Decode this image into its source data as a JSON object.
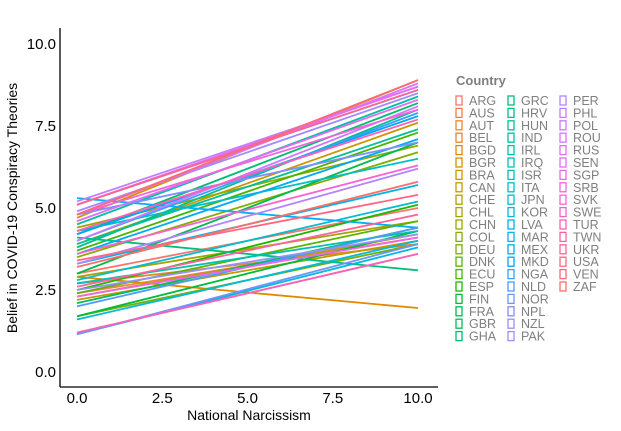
{
  "chart_data": {
    "type": "line",
    "title": "",
    "xlabel": "National Narcissism",
    "ylabel": "Belief in COVID-19 Conspiracy Theories",
    "xlim": [
      0,
      10
    ],
    "ylim": [
      0,
      10
    ],
    "x_ticks": [
      "0.0",
      "2.5",
      "5.0",
      "7.5",
      "10.0"
    ],
    "y_ticks": [
      "0.0",
      "2.5",
      "5.0",
      "7.5",
      "10.0"
    ],
    "grid": false,
    "legend": {
      "title": "Country",
      "placement": "right"
    },
    "x": [
      0,
      10
    ],
    "series": [
      {
        "name": "ARG",
        "color": "#F8766D",
        "values": [
          3.0,
          5.0
        ]
      },
      {
        "name": "AUS",
        "color": "#F47D4D",
        "values": [
          2.4,
          4.1
        ]
      },
      {
        "name": "AUT",
        "color": "#EE8431",
        "values": [
          1.2,
          3.6
        ]
      },
      {
        "name": "BEL",
        "color": "#E88526",
        "values": [
          2.7,
          3.9
        ]
      },
      {
        "name": "BGD",
        "color": "#E38900",
        "values": [
          2.9,
          1.95
        ]
      },
      {
        "name": "BGR",
        "color": "#D89000",
        "values": [
          4.7,
          8.9
        ]
      },
      {
        "name": "BRA",
        "color": "#CC9600",
        "values": [
          3.9,
          7.6
        ]
      },
      {
        "name": "CAN",
        "color": "#BF9B00",
        "values": [
          2.2,
          4.0
        ]
      },
      {
        "name": "CHE",
        "color": "#B4A000",
        "values": [
          2.3,
          4.2
        ]
      },
      {
        "name": "CHL",
        "color": "#A6A400",
        "values": [
          2.9,
          4.6
        ]
      },
      {
        "name": "CHN",
        "color": "#98A800",
        "values": [
          4.4,
          6.9
        ]
      },
      {
        "name": "COL",
        "color": "#88AC00",
        "values": [
          3.5,
          6.7
        ]
      },
      {
        "name": "DEU",
        "color": "#76AF00",
        "values": [
          1.7,
          3.9
        ]
      },
      {
        "name": "DNK",
        "color": "#62B200",
        "values": [
          2.4,
          4.6
        ]
      },
      {
        "name": "ECU",
        "color": "#48B500",
        "values": [
          3.7,
          7.3
        ]
      },
      {
        "name": "ESP",
        "color": "#1DB700",
        "values": [
          2.5,
          5.1
        ]
      },
      {
        "name": "FIN",
        "color": "#00BA38",
        "values": [
          1.7,
          4.3
        ]
      },
      {
        "name": "FRA",
        "color": "#00BB4E",
        "values": [
          3.0,
          7.0
        ]
      },
      {
        "name": "GBR",
        "color": "#00BC5F",
        "values": [
          2.1,
          4.4
        ]
      },
      {
        "name": "GHA",
        "color": "#00BD6F",
        "values": [
          4.2,
          8.2
        ]
      },
      {
        "name": "GRC",
        "color": "#00BE7D",
        "values": [
          4.1,
          3.1
        ]
      },
      {
        "name": "HRV",
        "color": "#00BF8A",
        "values": [
          3.8,
          8.0
        ]
      },
      {
        "name": "HUN",
        "color": "#00C097",
        "values": [
          3.9,
          7.4
        ]
      },
      {
        "name": "IND",
        "color": "#00C0A3",
        "values": [
          4.5,
          8.4
        ]
      },
      {
        "name": "IRL",
        "color": "#00C0AF",
        "values": [
          2.7,
          4.3
        ]
      },
      {
        "name": "IRQ",
        "color": "#00BFBA",
        "values": [
          5.1,
          8.6
        ]
      },
      {
        "name": "ISR",
        "color": "#00BEC4",
        "values": [
          4.3,
          6.5
        ]
      },
      {
        "name": "ITA",
        "color": "#00BDCE",
        "values": [
          2.8,
          5.2
        ]
      },
      {
        "name": "JPN",
        "color": "#00BBD7",
        "values": [
          1.6,
          4.0
        ]
      },
      {
        "name": "KOR",
        "color": "#00B8E0",
        "values": [
          1.15,
          3.8
        ]
      },
      {
        "name": "LVA",
        "color": "#00B4E9",
        "values": [
          3.3,
          5.7
        ]
      },
      {
        "name": "MAR",
        "color": "#00B0F0",
        "values": [
          5.3,
          4.4
        ]
      },
      {
        "name": "MEX",
        "color": "#00ABF6",
        "values": [
          3.6,
          7.1
        ]
      },
      {
        "name": "MKD",
        "color": "#00A5FC",
        "values": [
          4.2,
          7.8
        ]
      },
      {
        "name": "NGA",
        "color": "#35A2FF",
        "values": [
          4.0,
          7.9
        ]
      },
      {
        "name": "NLD",
        "color": "#509AFF",
        "values": [
          2.0,
          4.4
        ]
      },
      {
        "name": "NOR",
        "color": "#6B94FF",
        "values": [
          1.15,
          3.9
        ]
      },
      {
        "name": "NPL",
        "color": "#808EFF",
        "values": [
          4.8,
          7.0
        ]
      },
      {
        "name": "NZL",
        "color": "#9590FF",
        "values": [
          2.5,
          4.2
        ]
      },
      {
        "name": "PAK",
        "color": "#A58AFF",
        "values": [
          4.9,
          8.5
        ]
      },
      {
        "name": "PER",
        "color": "#B385FF",
        "values": [
          3.3,
          6.2
        ]
      },
      {
        "name": "PHL",
        "color": "#C17FFF",
        "values": [
          5.2,
          8.7
        ]
      },
      {
        "name": "POL",
        "color": "#CD79FF",
        "values": [
          4.0,
          8.1
        ]
      },
      {
        "name": "ROU",
        "color": "#D873FA",
        "values": [
          4.8,
          8.8
        ]
      },
      {
        "name": "RUS",
        "color": "#E06EF2",
        "values": [
          4.6,
          8.3
        ]
      },
      {
        "name": "SEN",
        "color": "#E76BF3",
        "values": [
          5.1,
          8.7
        ]
      },
      {
        "name": "SGP",
        "color": "#EE67EA",
        "values": [
          2.3,
          4.1
        ]
      },
      {
        "name": "SRB",
        "color": "#F365DC",
        "values": [
          4.8,
          8.0
        ]
      },
      {
        "name": "SVK",
        "color": "#F863D0",
        "values": [
          3.6,
          6.3
        ]
      },
      {
        "name": "SWE",
        "color": "#FB61C1",
        "values": [
          1.2,
          3.6
        ]
      },
      {
        "name": "TUR",
        "color": "#FD61B2",
        "values": [
          4.3,
          7.7
        ]
      },
      {
        "name": "TWN",
        "color": "#FE62A3",
        "values": [
          2.6,
          4.8
        ]
      },
      {
        "name": "UKR",
        "color": "#FF6493",
        "values": [
          5.1,
          8.6
        ]
      },
      {
        "name": "USA",
        "color": "#FF6784",
        "values": [
          3.4,
          5.4
        ]
      },
      {
        "name": "VEN",
        "color": "#FC6A76",
        "values": [
          4.8,
          8.9
        ]
      },
      {
        "name": "ZAF",
        "color": "#FA6E6B",
        "values": [
          3.2,
          5.8
        ]
      }
    ]
  }
}
